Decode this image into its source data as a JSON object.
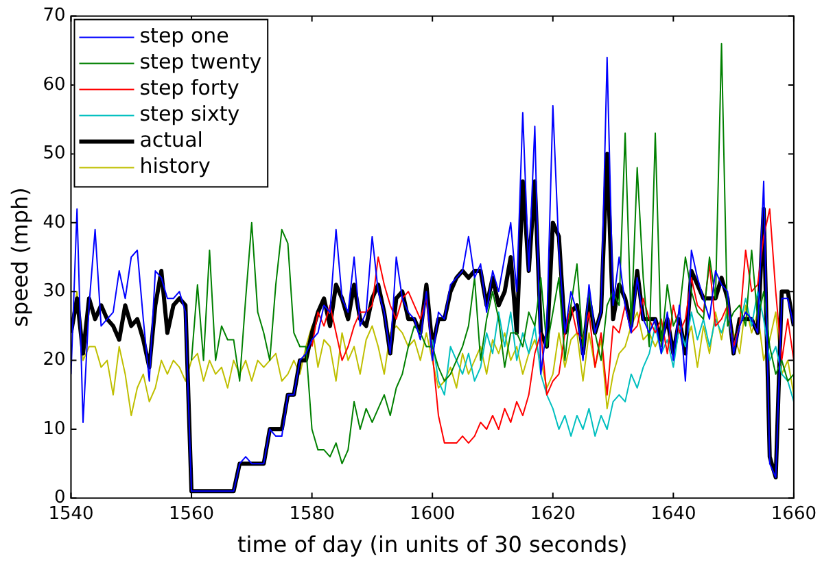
{
  "chart_data": {
    "type": "line",
    "xlabel": "time of day (in units of 30 seconds)",
    "ylabel": "speed (mph)",
    "x": [
      1540,
      1541,
      1542,
      1543,
      1544,
      1545,
      1546,
      1547,
      1548,
      1549,
      1550,
      1551,
      1552,
      1553,
      1554,
      1555,
      1556,
      1557,
      1558,
      1559,
      1560,
      1561,
      1562,
      1563,
      1564,
      1565,
      1566,
      1567,
      1568,
      1569,
      1570,
      1571,
      1572,
      1573,
      1574,
      1575,
      1576,
      1577,
      1578,
      1579,
      1580,
      1581,
      1582,
      1583,
      1584,
      1585,
      1586,
      1587,
      1588,
      1589,
      1590,
      1591,
      1592,
      1593,
      1594,
      1595,
      1596,
      1597,
      1598,
      1599,
      1600,
      1601,
      1602,
      1603,
      1604,
      1605,
      1606,
      1607,
      1608,
      1609,
      1610,
      1611,
      1612,
      1613,
      1614,
      1615,
      1616,
      1617,
      1618,
      1619,
      1620,
      1621,
      1622,
      1623,
      1624,
      1625,
      1626,
      1627,
      1628,
      1629,
      1630,
      1631,
      1632,
      1633,
      1634,
      1635,
      1636,
      1637,
      1638,
      1639,
      1640,
      1641,
      1642,
      1643,
      1644,
      1645,
      1646,
      1647,
      1648,
      1649,
      1650,
      1651,
      1652,
      1653,
      1654,
      1655,
      1656,
      1657,
      1658,
      1659,
      1660
    ],
    "xlim": [
      1540,
      1660
    ],
    "xticks": [
      1540,
      1560,
      1580,
      1600,
      1620,
      1640,
      1660
    ],
    "ylim": [
      0,
      70
    ],
    "yticks": [
      0,
      10,
      20,
      30,
      40,
      50,
      60,
      70
    ],
    "grid": false,
    "legend": "top left",
    "marker": "none",
    "line_style": "solid",
    "series": [
      {
        "name": "step one",
        "color": "#0000ff",
        "values": [
          18,
          42,
          11,
          28,
          39,
          25,
          26,
          27,
          33,
          29,
          35,
          36,
          26,
          17,
          33,
          32,
          29,
          29,
          30,
          27,
          1,
          1,
          1,
          1,
          1,
          1,
          1,
          1,
          5,
          6,
          5,
          5,
          5,
          10,
          9,
          9,
          15,
          15,
          20,
          21,
          23,
          24,
          28,
          27,
          39,
          29,
          27,
          35,
          25,
          27,
          38,
          30,
          27,
          21,
          35,
          29,
          27,
          26,
          23,
          30,
          20,
          27,
          26,
          31,
          32,
          33,
          38,
          32,
          34,
          27,
          33,
          30,
          35,
          40,
          30,
          56,
          33,
          54,
          18,
          25,
          57,
          36,
          24,
          30,
          27,
          20,
          31,
          24,
          27,
          64,
          28,
          35,
          28,
          24,
          32,
          26,
          24,
          26,
          21,
          27,
          20,
          28,
          17,
          36,
          32,
          29,
          26,
          33,
          31,
          30,
          21,
          25,
          27,
          26,
          24,
          46,
          5,
          3,
          29,
          29,
          25
        ]
      },
      {
        "name": "step twenty",
        "color": "#008000",
        "values": [
          null,
          null,
          null,
          null,
          null,
          null,
          null,
          null,
          null,
          null,
          null,
          null,
          null,
          null,
          null,
          null,
          null,
          null,
          null,
          null,
          20,
          31,
          20,
          36,
          20,
          25,
          23,
          23,
          17,
          29,
          40,
          27,
          24,
          20,
          31,
          39,
          37,
          24,
          22,
          22,
          10,
          7,
          7,
          6,
          8,
          5,
          7,
          14,
          10,
          13,
          11,
          13,
          15,
          12,
          16,
          18,
          22,
          25,
          24,
          22,
          22,
          19,
          17,
          18,
          20,
          22,
          25,
          32,
          20,
          26,
          30,
          26,
          19,
          24,
          24,
          22,
          27,
          25,
          32,
          22,
          27,
          32,
          20,
          28,
          34,
          22,
          30,
          24,
          20,
          28,
          30,
          28,
          53,
          25,
          48,
          32,
          22,
          53,
          22,
          31,
          25,
          27,
          35,
          30,
          27,
          26,
          35,
          29,
          66,
          25,
          27,
          28,
          25,
          36,
          26,
          30,
          22,
          18,
          20,
          17,
          18
        ]
      },
      {
        "name": "step forty",
        "color": "#ff0000",
        "values": [
          null,
          null,
          null,
          null,
          null,
          null,
          null,
          null,
          null,
          null,
          null,
          null,
          null,
          null,
          null,
          null,
          null,
          null,
          null,
          null,
          null,
          null,
          null,
          null,
          null,
          null,
          null,
          null,
          null,
          null,
          null,
          null,
          null,
          null,
          null,
          null,
          null,
          null,
          null,
          null,
          22,
          27,
          25,
          28,
          24,
          20,
          22,
          25,
          27,
          27,
          28,
          35,
          31,
          28,
          26,
          29,
          30,
          28,
          26,
          29,
          21,
          12,
          8,
          8,
          8,
          9,
          8,
          9,
          11,
          10,
          12,
          10,
          13,
          11,
          14,
          12,
          15,
          21,
          24,
          15,
          17,
          18,
          24,
          28,
          24,
          23,
          27,
          19,
          24,
          15,
          25,
          24,
          28,
          24,
          25,
          29,
          26,
          24,
          26,
          21,
          28,
          24,
          26,
          32,
          28,
          27,
          34,
          25,
          26,
          28,
          22,
          25,
          36,
          30,
          31,
          38,
          42,
          30,
          20,
          26,
          20
        ]
      },
      {
        "name": "step sixty",
        "color": "#00bfbf",
        "values": [
          null,
          null,
          null,
          null,
          null,
          null,
          null,
          null,
          null,
          null,
          null,
          null,
          null,
          null,
          null,
          null,
          null,
          null,
          null,
          null,
          null,
          null,
          null,
          null,
          null,
          null,
          null,
          null,
          null,
          null,
          null,
          null,
          null,
          null,
          null,
          null,
          null,
          null,
          null,
          null,
          null,
          null,
          null,
          null,
          null,
          null,
          null,
          null,
          null,
          null,
          null,
          null,
          null,
          null,
          null,
          null,
          null,
          null,
          null,
          null,
          23,
          17,
          15,
          22,
          20,
          18,
          21,
          17,
          19,
          24,
          21,
          27,
          22,
          27,
          20,
          24,
          21,
          25,
          18,
          15,
          13,
          10,
          12,
          9,
          12,
          10,
          13,
          9,
          12,
          10,
          14,
          15,
          14,
          18,
          16,
          19,
          21,
          25,
          21,
          23,
          19,
          25,
          22,
          27,
          23,
          26,
          22,
          26,
          24,
          27,
          22,
          25,
          29,
          25,
          30,
          26,
          20,
          22,
          18,
          17,
          14
        ]
      },
      {
        "name": "actual",
        "color": "#000000",
        "values": [
          24,
          29,
          21,
          29,
          26,
          28,
          26,
          25,
          23,
          28,
          25,
          26,
          23,
          19,
          28,
          33,
          24,
          28,
          29,
          28,
          1,
          1,
          1,
          1,
          1,
          1,
          1,
          1,
          5,
          5,
          5,
          5,
          5,
          10,
          10,
          10,
          15,
          15,
          20,
          20,
          24,
          27,
          29,
          25,
          31,
          29,
          26,
          31,
          26,
          25,
          29,
          31,
          27,
          21,
          29,
          30,
          26,
          26,
          24,
          31,
          22,
          26,
          26,
          30,
          32,
          33,
          32,
          33,
          33,
          28,
          32,
          28,
          30,
          35,
          24,
          46,
          33,
          46,
          24,
          22,
          40,
          38,
          24,
          27,
          28,
          21,
          29,
          24,
          27,
          50,
          26,
          31,
          29,
          25,
          33,
          26,
          26,
          26,
          23,
          26,
          21,
          26,
          21,
          33,
          31,
          29,
          29,
          29,
          32,
          29,
          21,
          26,
          26,
          26,
          24,
          42,
          6,
          3,
          30,
          30,
          25
        ]
      },
      {
        "name": "history",
        "color": "#bfbf00",
        "values": [
          25,
          30,
          20,
          22,
          22,
          19,
          20,
          15,
          22,
          18,
          12,
          16,
          18,
          14,
          16,
          20,
          18,
          20,
          19,
          17,
          20,
          21,
          17,
          20,
          18,
          19,
          16,
          20,
          18,
          20,
          17,
          20,
          19,
          20,
          21,
          17,
          18,
          20,
          18,
          22,
          25,
          19,
          23,
          22,
          17,
          24,
          20,
          22,
          18,
          23,
          25,
          22,
          18,
          24,
          25,
          24,
          22,
          23,
          20,
          24,
          20,
          16,
          17,
          19,
          16,
          21,
          18,
          20,
          22,
          18,
          23,
          21,
          24,
          20,
          22,
          18,
          21,
          23,
          20,
          16,
          18,
          24,
          19,
          23,
          24,
          17,
          24,
          19,
          23,
          13,
          18,
          21,
          22,
          25,
          27,
          23,
          24,
          22,
          24,
          26,
          22,
          26,
          22,
          25,
          19,
          25,
          21,
          27,
          23,
          28,
          24,
          21,
          28,
          24,
          27,
          20,
          23,
          27,
          18,
          20,
          15
        ]
      }
    ]
  }
}
